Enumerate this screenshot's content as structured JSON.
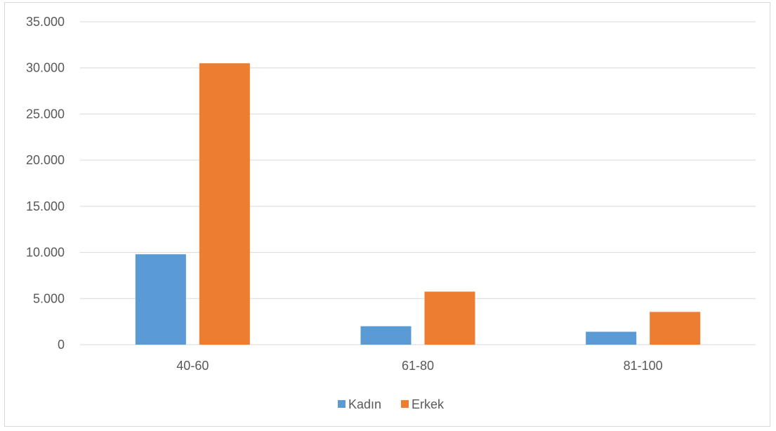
{
  "chart_data": {
    "type": "bar",
    "title": "",
    "xlabel": "",
    "ylabel": "",
    "categories": [
      "40-60",
      "61-80",
      "81-100"
    ],
    "series": [
      {
        "name": "Kadın",
        "color": "#5b9bd5",
        "values": [
          9800,
          2000,
          1400
        ]
      },
      {
        "name": "Erkek",
        "color": "#ed7d31",
        "values": [
          30500,
          5750,
          3550
        ]
      }
    ],
    "ylim": [
      0,
      35000
    ],
    "yticks": [
      0,
      5000,
      10000,
      15000,
      20000,
      25000,
      30000,
      35000
    ],
    "ytick_labels": [
      "0",
      "5.000",
      "10.000",
      "15.000",
      "20.000",
      "25.000",
      "30.000",
      "35.000"
    ],
    "grid": true,
    "legend_position": "bottom-center"
  }
}
